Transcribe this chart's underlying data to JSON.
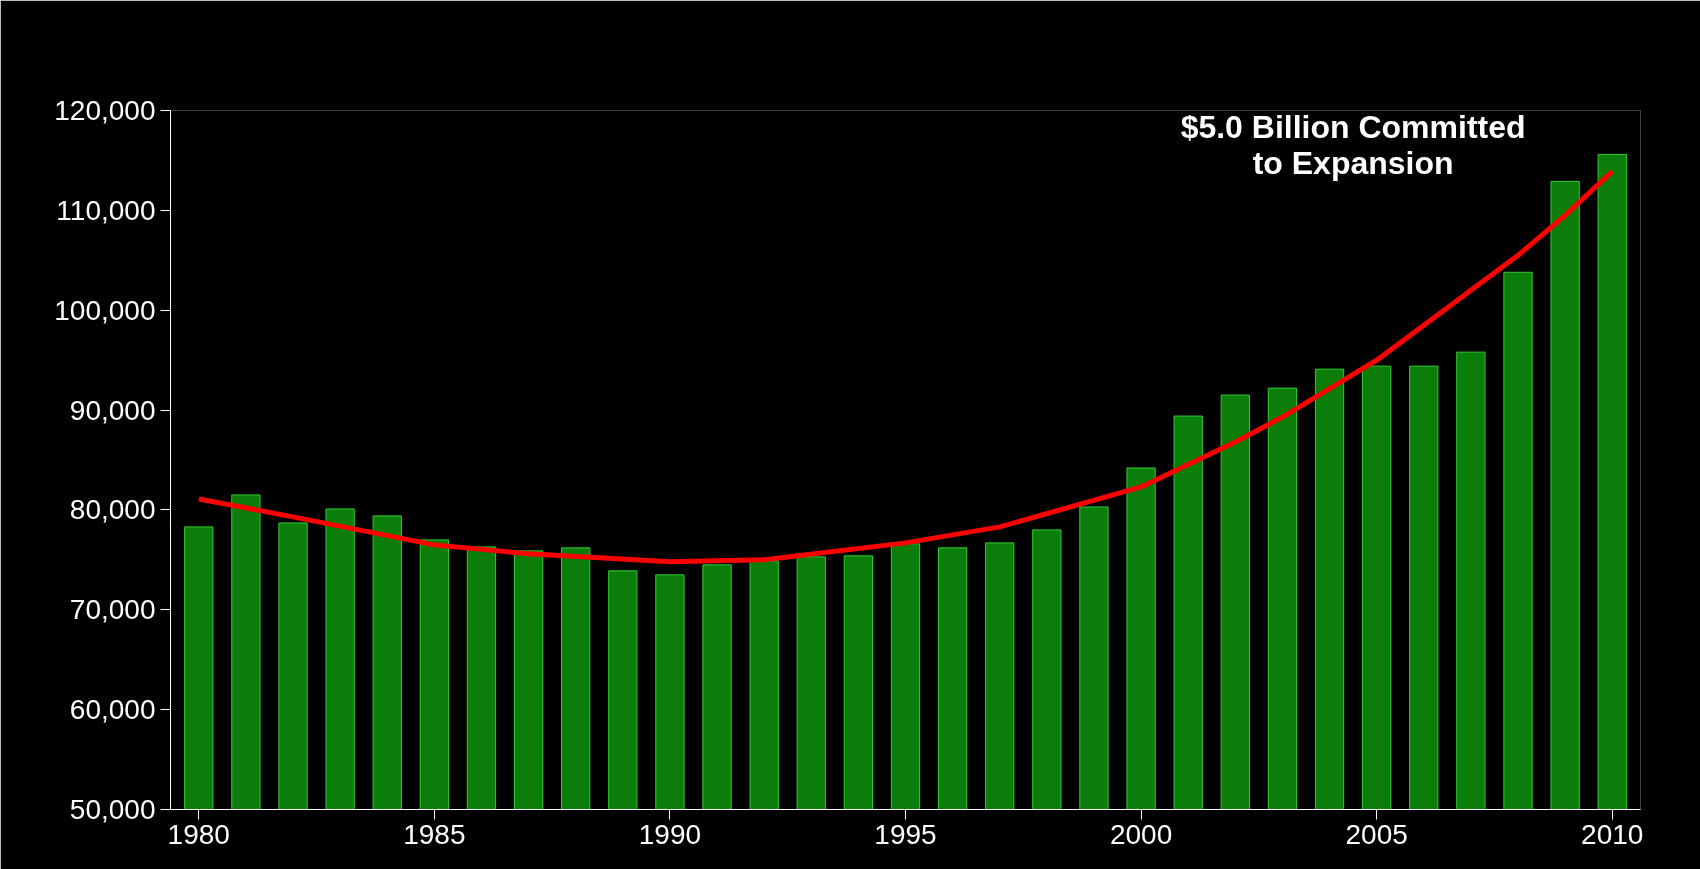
{
  "chart_data": {
    "type": "bar",
    "x": [
      1980,
      1981,
      1982,
      1983,
      1984,
      1985,
      1986,
      1987,
      1988,
      1989,
      1990,
      1991,
      1992,
      1993,
      1994,
      1995,
      1996,
      1997,
      1998,
      1999,
      2000,
      2001,
      2002,
      2003,
      2004,
      2005,
      2006,
      2007,
      2008,
      2009,
      2010
    ],
    "series": [
      {
        "color": "#0b7d0b",
        "values": [
          78300,
          81500,
          78700,
          80100,
          79400,
          77000,
          76300,
          75900,
          76200,
          73900,
          73500,
          74500,
          74900,
          75300,
          75400,
          76600,
          76200,
          76700,
          78000,
          80300,
          84200,
          89400,
          91500,
          92200,
          94100,
          94400,
          94400,
          95800,
          103800,
          112900,
          115600
        ]
      },
      {
        "type": "line",
        "color": "#ff0000",
        "x": [
          1980,
          1982,
          1985,
          1987,
          1990,
          1992,
          1995,
          1997,
          2000,
          2002,
          2003,
          2005,
          2007,
          2008,
          2009,
          2010
        ],
        "values": [
          81100,
          79300,
          76500,
          75600,
          74800,
          75000,
          76700,
          78300,
          82300,
          86800,
          89300,
          95000,
          102000,
          105500,
          109500,
          113900
        ]
      }
    ],
    "xlim": [
      1979.4,
      2010.6
    ],
    "xticks": [
      1980,
      1985,
      1990,
      1995,
      2000,
      2005,
      2010
    ],
    "ylim": [
      50000,
      120000
    ],
    "yticks": [
      {
        "value": 50000,
        "label": "50,000"
      },
      {
        "value": 60000,
        "label": "60,000"
      },
      {
        "value": 70000,
        "label": "70,000"
      },
      {
        "value": 80000,
        "label": "80,000"
      },
      {
        "value": 90000,
        "label": "90,000"
      },
      {
        "value": 100000,
        "label": "100,000"
      },
      {
        "value": 110000,
        "label": "110,000"
      },
      {
        "value": 120000,
        "label": "120,000"
      }
    ],
    "grid": false,
    "annotations": [
      "$5.0 Billion Committed\nto Expansion"
    ]
  }
}
